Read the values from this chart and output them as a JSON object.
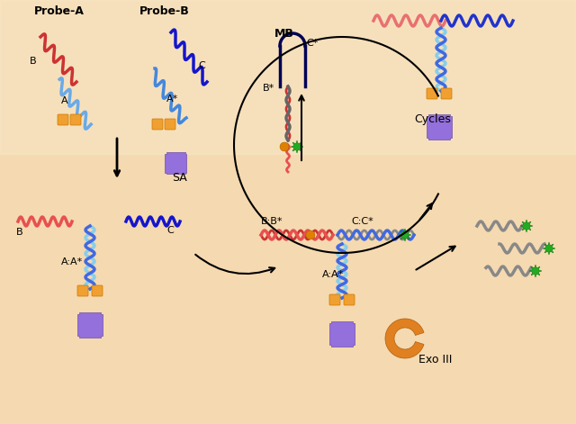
{
  "bg_color": "#F5DEB3",
  "bg_gradient_top": "#F2C896",
  "bg_gradient_bottom": "#F5E0C0",
  "title": "",
  "colors": {
    "red_strand": "#E87070",
    "dark_red": "#8B0000",
    "blue_strand": "#4169E1",
    "light_blue": "#87CEEB",
    "dark_blue": "#00008B",
    "gray_strand": "#888888",
    "orange_square": "#F0A030",
    "purple_cross": "#9370DB",
    "green_star": "#22AA22",
    "orange_blob": "#E08020",
    "arrow_color": "#111111"
  },
  "labels": {
    "probe_a": "Probe-A",
    "probe_b": "Probe-B",
    "A": "A",
    "A_star": "A*",
    "B": "B",
    "C": "C",
    "B_star": "B*",
    "C_star": "C*",
    "AA_star": "A:A*",
    "BB_star": "B:B*",
    "CC_star": "C:C*",
    "MB": "MB",
    "SA": "SA",
    "Cycles": "Cycles",
    "ExoIII": "Exo III"
  }
}
